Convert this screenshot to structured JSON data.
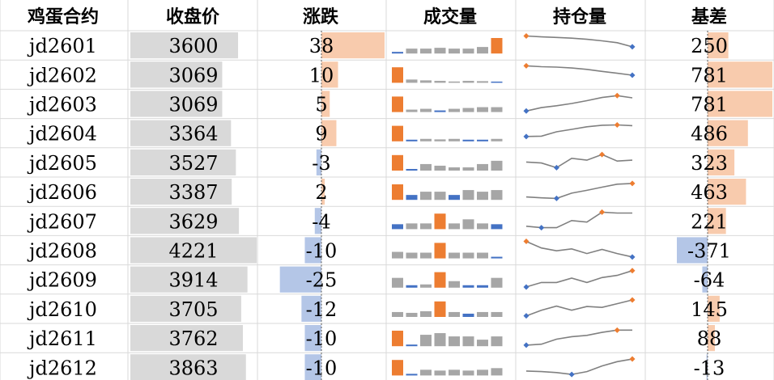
{
  "headers": [
    "鸡蛋合约",
    "收盘价",
    "涨跌",
    "成交量",
    "持仓量",
    "基差"
  ],
  "colors": {
    "close_bar": "#d9d9d9",
    "positive_bar": "#f8cbad",
    "negative_bar": "#b4c6e7",
    "axis_line": "#595959",
    "volume_bar": "#a6a6a6",
    "volume_high": "#ed7d31",
    "volume_low": "#4472c4",
    "oi_line": "#808080",
    "oi_high": "#ed7d31",
    "oi_low": "#4472c4",
    "grid": "#d9d9d9"
  },
  "chart_data": {
    "type": "table",
    "rows": [
      {
        "contract": "jd2601",
        "close": "3600",
        "change": "38",
        "basis": "250",
        "volume": [
          0.1,
          0.3,
          0.3,
          0.35,
          0.3,
          0.3,
          0.4,
          0.95
        ],
        "open_interest": [
          0.98,
          0.93,
          0.9,
          0.86,
          0.8,
          0.72,
          0.62,
          0.4
        ]
      },
      {
        "contract": "jd2602",
        "close": "3069",
        "change": "10",
        "basis": "781",
        "volume": [
          0.95,
          0.2,
          0.15,
          0.12,
          0.08,
          0.12,
          0.1,
          0.05
        ],
        "open_interest": [
          0.95,
          0.9,
          0.88,
          0.83,
          0.76,
          0.65,
          0.55,
          0.45
        ]
      },
      {
        "contract": "jd2603",
        "close": "3069",
        "change": "5",
        "basis": "781",
        "volume": [
          0.95,
          0.15,
          0.2,
          0.1,
          0.2,
          0.25,
          0.3,
          0.3
        ],
        "open_interest": [
          0.1,
          0.28,
          0.38,
          0.5,
          0.65,
          0.82,
          0.92,
          0.8
        ]
      },
      {
        "contract": "jd2604",
        "close": "3364",
        "change": "9",
        "basis": "486",
        "volume": [
          0.95,
          0.1,
          0.15,
          0.12,
          0.15,
          0.1,
          0.1,
          0.15
        ],
        "open_interest": [
          0.3,
          0.32,
          0.55,
          0.68,
          0.82,
          0.9,
          0.92,
          0.88
        ]
      },
      {
        "contract": "jd2605",
        "close": "3527",
        "change": "-3",
        "basis": "323",
        "volume": [
          0.95,
          0.1,
          0.4,
          0.3,
          0.2,
          0.2,
          0.4,
          0.6
        ],
        "open_interest": [
          0.5,
          0.45,
          0.2,
          0.7,
          0.6,
          0.9,
          0.55,
          0.6
        ]
      },
      {
        "contract": "jd2606",
        "close": "3387",
        "change": "2",
        "basis": "463",
        "volume": [
          0.95,
          0.3,
          0.5,
          0.5,
          0.3,
          0.6,
          0.5,
          0.6
        ],
        "open_interest": [
          0.2,
          0.15,
          0.12,
          0.4,
          0.55,
          0.72,
          0.88,
          0.92
        ]
      },
      {
        "contract": "jd2607",
        "close": "3629",
        "change": "-4",
        "basis": "221",
        "volume": [
          0.3,
          0.35,
          0.35,
          0.95,
          0.35,
          0.6,
          0.35,
          0.3
        ],
        "open_interest": [
          0.2,
          0.12,
          0.12,
          0.5,
          0.42,
          0.95,
          0.9,
          0.9
        ]
      },
      {
        "contract": "jd2608",
        "close": "4221",
        "change": "-10",
        "basis": "-371",
        "volume": [
          0.4,
          0.35,
          0.35,
          0.95,
          0.35,
          0.35,
          0.35,
          0.1
        ],
        "open_interest": [
          0.95,
          0.6,
          0.45,
          0.55,
          0.3,
          0.52,
          0.3,
          0.12
        ]
      },
      {
        "contract": "jd2609",
        "close": "3914",
        "change": "-25",
        "basis": "-64",
        "volume": [
          0.6,
          0.15,
          0.2,
          0.95,
          0.4,
          0.15,
          0.15,
          0.6
        ],
        "open_interest": [
          0.08,
          0.32,
          0.32,
          0.55,
          0.32,
          0.58,
          0.7,
          0.95
        ]
      },
      {
        "contract": "jd2610",
        "close": "3705",
        "change": "-12",
        "basis": "145",
        "volume": [
          0.3,
          0.25,
          0.35,
          0.95,
          0.3,
          0.2,
          0.3,
          0.3
        ],
        "open_interest": [
          0.1,
          0.4,
          0.62,
          0.4,
          0.6,
          0.55,
          0.75,
          0.95
        ]
      },
      {
        "contract": "jd2611",
        "close": "3762",
        "change": "-10",
        "basis": "88",
        "volume": [
          0.95,
          0.1,
          0.7,
          0.8,
          0.6,
          0.6,
          0.4,
          0.6
        ],
        "open_interest": [
          0.1,
          0.15,
          0.42,
          0.55,
          0.62,
          0.78,
          0.9,
          0.9
        ]
      },
      {
        "contract": "jd2612",
        "close": "3863",
        "change": "-10",
        "basis": "-13",
        "volume": [
          0.95,
          0.1,
          0.35,
          0.3,
          0.35,
          0.3,
          0.35,
          0.45
        ],
        "open_interest": [
          0.28,
          0.25,
          0.2,
          0.1,
          0.25,
          0.55,
          0.78,
          0.92
        ]
      }
    ]
  }
}
